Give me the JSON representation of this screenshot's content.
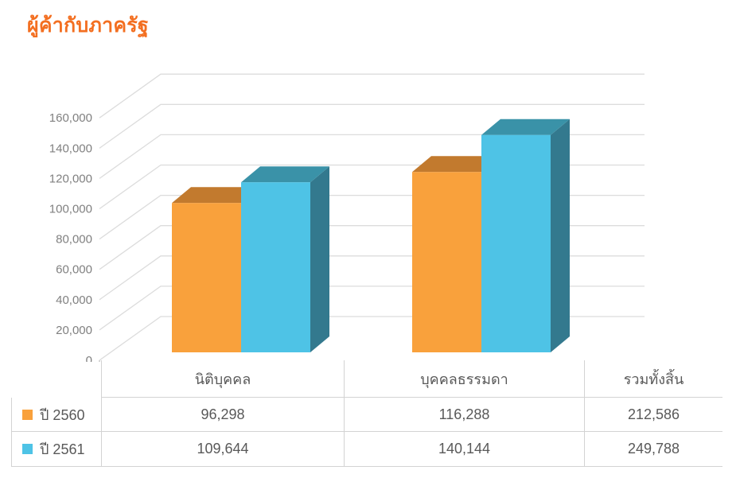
{
  "title": "ผู้ค้ากับภาครัฐ",
  "colors": {
    "title": "#F36F21",
    "grid": "#DCDCDC",
    "tick_text": "#808080",
    "table_text": "#595959",
    "table_border": "#D3D3D3"
  },
  "chart_data": {
    "type": "bar",
    "style": "3d-clustered-column",
    "title": "ผู้ค้ากับภาครัฐ",
    "categories": [
      "นิติบุคคล",
      "บุคคลธรรมดา",
      "รวมทั้งสิ้น"
    ],
    "plotted_category_count": 2,
    "series": [
      {
        "name": "ปี 2560",
        "color": "#F9A13C",
        "top_color": "#C27A2E",
        "side_color": "#B06E28",
        "values": [
          96298,
          116288,
          212586
        ]
      },
      {
        "name": "ปี 2561",
        "color": "#4EC3E6",
        "top_color": "#3A92A8",
        "side_color": "#33798E",
        "values": [
          109644,
          140144,
          249788
        ]
      }
    ],
    "ylim": [
      0,
      160000
    ],
    "ytick_interval": 20000,
    "ytick_labels": [
      "0",
      "20,000",
      "40,000",
      "60,000",
      "80,000",
      "100,000",
      "120,000",
      "140,000",
      "160,000"
    ],
    "grid": true,
    "legend_position": "left-of-table"
  },
  "table": {
    "headers": [
      "นิติบุคคล",
      "บุคคลธรรมดา",
      "รวมทั้งสิ้น"
    ],
    "rows": [
      {
        "label": "ปี 2560",
        "values": [
          "96,298",
          "116,288",
          "212,586"
        ]
      },
      {
        "label": "ปี 2561",
        "values": [
          "109,644",
          "140,144",
          "249,788"
        ]
      }
    ]
  }
}
